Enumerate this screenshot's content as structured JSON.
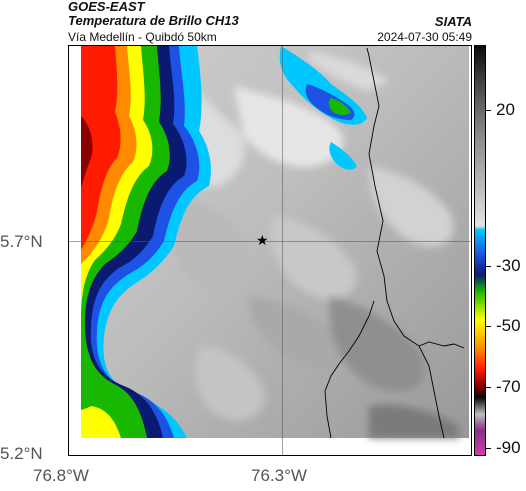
{
  "header": {
    "satellite": "GOES-EAST",
    "product": "Temperatura de Brillo CH13",
    "route": "Vía Medellín - Quibdó 50km",
    "agency": "SIATA",
    "timestamp": "2024-07-30 05:49"
  },
  "axes": {
    "y_ticks": [
      "5.7°N",
      "5.2°N"
    ],
    "x_ticks": [
      "76.8°W",
      "76.3°W"
    ]
  },
  "colorbar": {
    "ticks": [
      "20",
      "-30",
      "-50",
      "-70",
      "-90"
    ],
    "palette": {
      "black": "#0a0a0a",
      "gray_dark": "#4b4b4b",
      "gray_mid": "#a2a2a2",
      "gray_light": "#e2e2e2",
      "cyan": "#00c8ff",
      "blue": "#1d52e5",
      "navy": "#0a1a70",
      "green": "#19b800",
      "yellow": "#ffff00",
      "orange": "#ff8a00",
      "red": "#ff1b00",
      "dark_red": "#8a0000",
      "purple": "#8a2d8c",
      "magenta": "#d13fa8"
    }
  },
  "map": {
    "marker_symbol": "★"
  }
}
